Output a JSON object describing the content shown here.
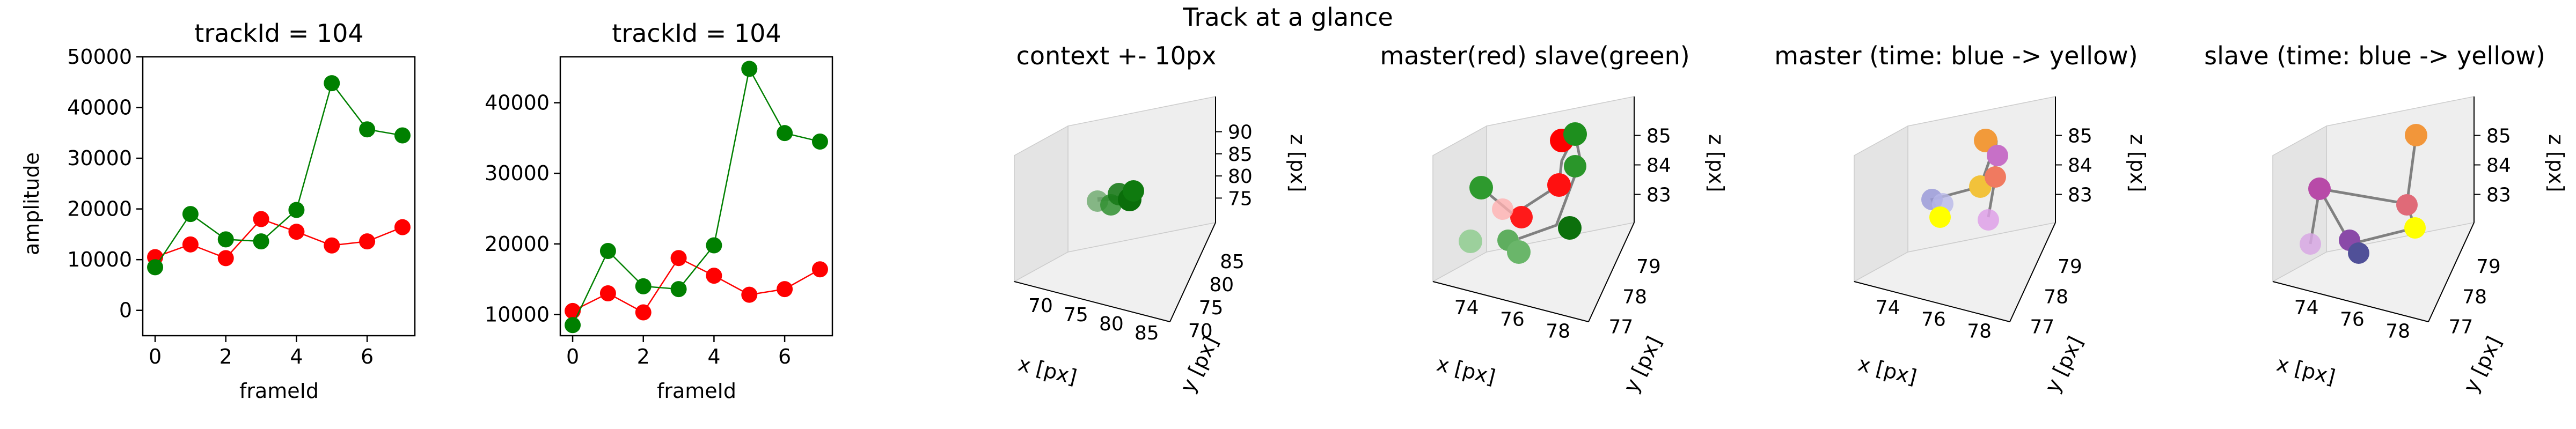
{
  "suptitle": "Track at a glance",
  "colors": {
    "master": "#ff0000",
    "slave": "#008000",
    "axis": "#000000",
    "pane": "#ebebeb",
    "connector": "#808080"
  },
  "chart_data": [
    {
      "type": "line",
      "title": "trackId = 104",
      "xlabel": "frameId",
      "ylabel": "amplitude",
      "x": [
        0,
        1,
        2,
        3,
        4,
        5,
        6,
        7
      ],
      "xlim": [
        -0.35,
        7.35
      ],
      "ylim": [
        -5000,
        50000
      ],
      "xticks": [
        0,
        2,
        4,
        6
      ],
      "yticks": [
        0,
        10000,
        20000,
        30000,
        40000,
        50000
      ],
      "series": [
        {
          "color": "#ff0000",
          "values": [
            10500,
            13000,
            10300,
            18000,
            15500,
            12800,
            13600,
            16400
          ]
        },
        {
          "color": "#008000",
          "values": [
            8500,
            19000,
            14000,
            13600,
            19800,
            44800,
            35700,
            34500
          ]
        }
      ]
    },
    {
      "type": "line",
      "title": "trackId = 104",
      "xlabel": "frameId",
      "ylabel": "",
      "x": [
        0,
        1,
        2,
        3,
        4,
        5,
        6,
        7
      ],
      "xlim": [
        -0.35,
        7.35
      ],
      "ylim": [
        7000,
        46500
      ],
      "xticks": [
        0,
        2,
        4,
        6
      ],
      "yticks": [
        10000,
        20000,
        30000,
        40000
      ],
      "series": [
        {
          "color": "#ff0000",
          "values": [
            10500,
            13000,
            10300,
            18000,
            15500,
            12800,
            13600,
            16400
          ]
        },
        {
          "color": "#008000",
          "values": [
            8500,
            19000,
            14000,
            13600,
            19800,
            44800,
            35700,
            34500
          ]
        }
      ]
    },
    {
      "type": "scatter3d",
      "title": "context +- 10px",
      "xlabel": "x [px]",
      "ylabel": "y [px]",
      "zlabel": "z [px]",
      "xticks": [
        "70",
        "75",
        "80",
        "85"
      ],
      "yticks": [
        "70",
        "75",
        "80",
        "85"
      ],
      "zticks": [
        "75",
        "80",
        "85",
        "90"
      ]
    },
    {
      "type": "scatter3d",
      "title": "master(red) slave(green)",
      "xlabel": "x [px]",
      "ylabel": "y [px]",
      "zlabel": "z [px]",
      "xticks": [
        "74",
        "76",
        "78"
      ],
      "yticks": [
        "77",
        "78",
        "79"
      ],
      "zticks": [
        "83",
        "84",
        "85"
      ]
    },
    {
      "type": "scatter3d",
      "title": "master (time: blue -> yellow)",
      "xlabel": "x [px]",
      "ylabel": "y [px]",
      "zlabel": "z [px]",
      "xticks": [
        "74",
        "76",
        "78"
      ],
      "yticks": [
        "77",
        "78",
        "79"
      ],
      "zticks": [
        "83",
        "84",
        "85"
      ]
    },
    {
      "type": "scatter3d",
      "title": "slave (time: blue -> yellow)",
      "xlabel": "x [px]",
      "ylabel": "y [px]",
      "zlabel": "z [px]",
      "xticks": [
        "74",
        "76",
        "78"
      ],
      "yticks": [
        "77",
        "78",
        "79"
      ],
      "zticks": [
        "83",
        "84",
        "85"
      ]
    }
  ]
}
